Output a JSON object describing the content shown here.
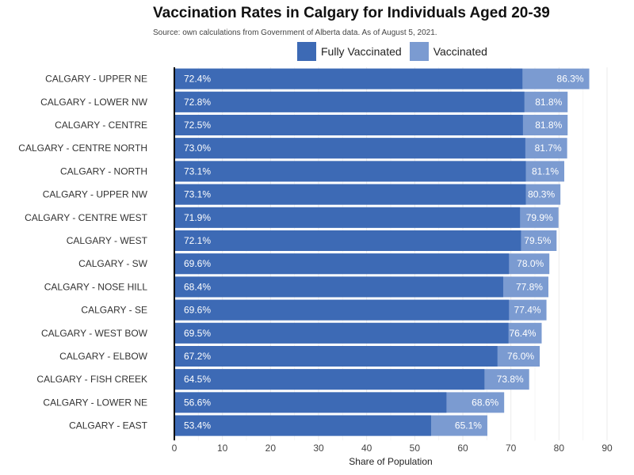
{
  "chart_data": {
    "type": "bar",
    "orientation": "horizontal",
    "title": "Vaccination Rates in Calgary for Individuals Aged 20-39",
    "subtitle": "Source: own calculations from Government of Alberta data. As of August 5, 2021.",
    "xlabel": "Share of Population",
    "ylabel": "",
    "xlim": [
      0,
      90
    ],
    "xticks": [
      0,
      10,
      20,
      30,
      40,
      50,
      60,
      70,
      80,
      90
    ],
    "grid": true,
    "legend_position": "top",
    "categories": [
      "CALGARY - UPPER NE",
      "CALGARY - LOWER NW",
      "CALGARY - CENTRE",
      "CALGARY - CENTRE NORTH",
      "CALGARY - NORTH",
      "CALGARY - UPPER NW",
      "CALGARY - CENTRE WEST",
      "CALGARY - WEST",
      "CALGARY - SW",
      "CALGARY - NOSE HILL",
      "CALGARY - SE",
      "CALGARY - WEST BOW",
      "CALGARY - ELBOW",
      "CALGARY - FISH CREEK",
      "CALGARY - LOWER NE",
      "CALGARY - EAST"
    ],
    "series": [
      {
        "name": "Fully Vaccinated",
        "color": "#3d6ab5",
        "values": [
          72.4,
          72.8,
          72.5,
          73.0,
          73.1,
          73.1,
          71.9,
          72.1,
          69.6,
          68.4,
          69.6,
          69.5,
          67.2,
          64.5,
          56.6,
          53.4
        ],
        "labels": [
          "72.4%",
          "72.8%",
          "72.5%",
          "73.0%",
          "73.1%",
          "73.1%",
          "71.9%",
          "72.1%",
          "69.6%",
          "68.4%",
          "69.6%",
          "69.5%",
          "67.2%",
          "64.5%",
          "56.6%",
          "53.4%"
        ]
      },
      {
        "name": "Vaccinated",
        "color": "#7b9bd1",
        "values": [
          86.3,
          81.8,
          81.8,
          81.7,
          81.1,
          80.3,
          79.9,
          79.5,
          78.0,
          77.8,
          77.4,
          76.4,
          76.0,
          73.8,
          68.6,
          65.1
        ],
        "labels": [
          "86.3%",
          "81.8%",
          "81.8%",
          "81.7%",
          "81.1%",
          "80.3%",
          "79.9%",
          "79.5%",
          "78.0%",
          "77.8%",
          "77.4%",
          "76.4%",
          "76.0%",
          "73.8%",
          "68.6%",
          "65.1%"
        ]
      }
    ]
  }
}
